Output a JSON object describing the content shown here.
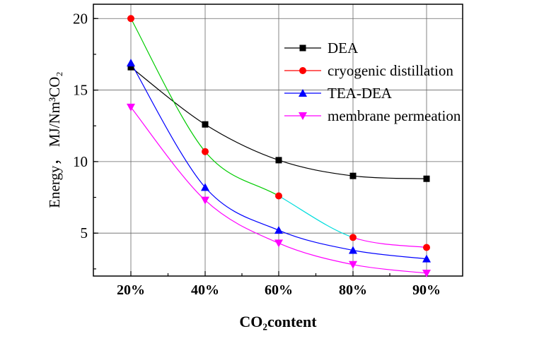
{
  "chart_data": {
    "type": "line",
    "xlabel": "CO₂content",
    "ylabel": "Energy，  MJ/Nm³CO₂",
    "categories": [
      "20%",
      "40%",
      "60%",
      "80%",
      "90%"
    ],
    "y_ticks": [
      "5",
      "10",
      "15",
      "20"
    ],
    "ylim": [
      2,
      21
    ],
    "grid": true,
    "legend_position": "top-right",
    "series": [
      {
        "name": "DEA",
        "color": "#000000",
        "marker": "square",
        "values": [
          16.6,
          12.6,
          10.1,
          9.0,
          8.8
        ]
      },
      {
        "name": "cryogenic distillation",
        "color": "#ff0000",
        "marker": "circle",
        "values": [
          20.0,
          10.7,
          7.6,
          4.7,
          4.0
        ]
      },
      {
        "name": "TEA-DEA",
        "color": "#0000ff",
        "marker": "triangle-up",
        "values": [
          16.9,
          8.2,
          5.2,
          3.8,
          3.2
        ]
      },
      {
        "name": "membrane permeation",
        "color": "#ff00ff",
        "marker": "triangle-down",
        "values": [
          13.8,
          7.3,
          4.3,
          2.8,
          2.2
        ]
      }
    ],
    "fit_segment_colors": {
      "cryogenic distillation": [
        "#00cc00",
        "#00cc00",
        "#00dddd",
        "#ff00ff"
      ]
    }
  }
}
